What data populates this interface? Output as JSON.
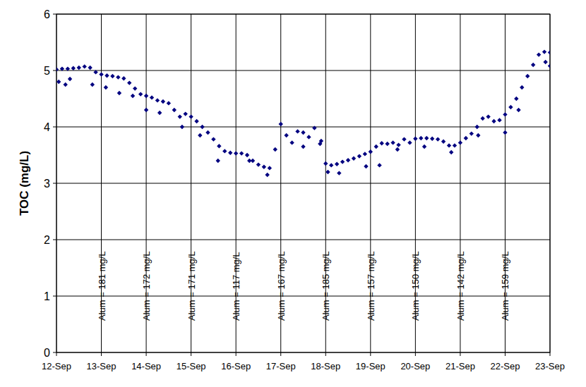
{
  "chart_data": {
    "type": "scatter",
    "y_label": "TOC (mg/L)",
    "xlim": [
      12,
      23
    ],
    "xticks": [
      {
        "value": 12,
        "label": "12-Sep"
      },
      {
        "value": 13,
        "label": "13-Sep"
      },
      {
        "value": 14,
        "label": "14-Sep"
      },
      {
        "value": 15,
        "label": "15-Sep"
      },
      {
        "value": 16,
        "label": "16-Sep"
      },
      {
        "value": 17,
        "label": "17-Sep"
      },
      {
        "value": 18,
        "label": "18-Sep"
      },
      {
        "value": 19,
        "label": "19-Sep"
      },
      {
        "value": 20,
        "label": "20-Sep"
      },
      {
        "value": 21,
        "label": "21-Sep"
      },
      {
        "value": 22,
        "label": "22-Sep"
      },
      {
        "value": 23,
        "label": "23-Sep"
      }
    ],
    "ylim": [
      0,
      6
    ],
    "yticks": [
      0,
      1,
      2,
      3,
      4,
      5,
      6
    ],
    "grid": true,
    "series": [
      {
        "color": "#000080",
        "marker": "diamond",
        "x": [
          12,
          12.125,
          12.25,
          12.375,
          12.5,
          12.625,
          12.75,
          12.875,
          13,
          13.125,
          13.25,
          13.375,
          13.5,
          13.625,
          13.75,
          13.875,
          14,
          14.125,
          14.25,
          14.375,
          14.5,
          14.625,
          14.75,
          14.875,
          15,
          15.125,
          15.25,
          15.375,
          15.5,
          15.625,
          15.75,
          15.875,
          16,
          16.125,
          16.25,
          16.375,
          16.5,
          16.625,
          16.75,
          16.875,
          17,
          17.125,
          17.25,
          17.375,
          17.5,
          17.625,
          17.75,
          17.875,
          18,
          18.125,
          18.25,
          18.375,
          18.5,
          18.625,
          18.75,
          18.875,
          19,
          19.125,
          19.25,
          19.375,
          19.5,
          19.625,
          19.75,
          19.875,
          20,
          20.125,
          20.25,
          20.375,
          20.5,
          20.625,
          20.75,
          20.875,
          21,
          21.125,
          21.25,
          21.375,
          21.5,
          21.625,
          21.75,
          21.875,
          22,
          22.125,
          22.25,
          22.375,
          22.5,
          22.625,
          22.75,
          22.875,
          23
        ],
        "values": [
          5.02,
          5.03,
          5.03,
          5.04,
          5.05,
          5.07,
          5.05,
          4.97,
          4.93,
          4.91,
          4.9,
          4.88,
          4.86,
          4.78,
          4.68,
          4.58,
          4.55,
          4.52,
          4.47,
          4.45,
          4.42,
          4.3,
          4.18,
          4.23,
          4.18,
          4.1,
          4.0,
          3.9,
          3.78,
          3.66,
          3.57,
          3.54,
          3.53,
          3.53,
          3.5,
          3.4,
          3.33,
          3.29,
          3.27,
          3.6,
          4.05,
          3.85,
          3.72,
          3.92,
          3.9,
          3.82,
          3.98,
          3.7,
          3.35,
          3.32,
          3.34,
          3.38,
          3.41,
          3.44,
          3.48,
          3.52,
          3.56,
          3.65,
          3.71,
          3.7,
          3.72,
          3.68,
          3.78,
          3.72,
          3.79,
          3.8,
          3.8,
          3.79,
          3.78,
          3.74,
          3.67,
          3.67,
          3.72,
          3.8,
          3.88,
          4.0,
          4.15,
          4.18,
          4.1,
          4.12,
          4.22,
          4.35,
          4.5,
          4.7,
          4.9,
          5.1,
          5.28,
          5.33,
          5.32
        ]
      },
      {
        "color": "#000080",
        "marker": "diamond",
        "x": [
          12.05,
          12.2,
          12.3,
          12.8,
          13.1,
          13.4,
          13.7,
          14,
          14.3,
          14.8,
          15.2,
          15.6,
          16.3,
          16.7,
          17.5,
          17.9,
          18.05,
          18.3,
          18.9,
          19.2,
          19.6,
          20.2,
          20.8,
          21.4,
          22,
          22.3,
          22.9,
          23
        ],
        "values": [
          4.8,
          4.75,
          4.85,
          4.75,
          4.7,
          4.6,
          4.55,
          4.3,
          4.25,
          4.0,
          3.85,
          3.4,
          3.4,
          3.15,
          3.65,
          3.75,
          3.2,
          3.18,
          3.3,
          3.32,
          3.6,
          3.65,
          3.55,
          3.85,
          3.9,
          4.3,
          5.15,
          5.08
        ]
      }
    ],
    "annotations": [
      {
        "text": "Alum = 181 mg/L",
        "x": 13
      },
      {
        "text": "Alum = 172 mg/L",
        "x": 14
      },
      {
        "text": "Alum = 171 mg/L",
        "x": 15
      },
      {
        "text": "Alum = 117 mg/L",
        "x": 16
      },
      {
        "text": "Alum = 167 mg/L",
        "x": 17
      },
      {
        "text": "Alum = 185 mg/L",
        "x": 18
      },
      {
        "text": "Alum = 157 mg/L",
        "x": 19
      },
      {
        "text": "Alum = 150 mg/L",
        "x": 20
      },
      {
        "text": "Alum = 142 mg/L",
        "x": 21
      },
      {
        "text": "Alum = 159 mg/L",
        "x": 22
      }
    ]
  }
}
